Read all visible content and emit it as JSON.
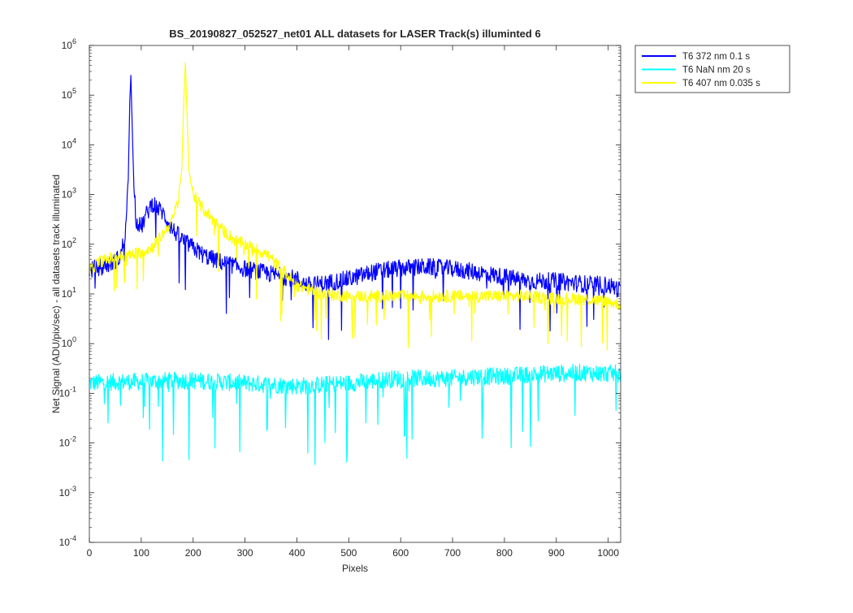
{
  "chart_data": {
    "type": "line",
    "title": "BS_20190827_052527_net01 ALL datasets for LASER  Track(s) illuminted 6",
    "xlabel": "Pixels",
    "ylabel": "Net Signal (ADU/pix/sec) - all datasets track illuminated",
    "xlim": [
      0,
      1024
    ],
    "ylim_exponent": [
      -4,
      6
    ],
    "yscale": "log",
    "x_ticks": [
      "0",
      "100",
      "200",
      "300",
      "400",
      "500",
      "600",
      "700",
      "800",
      "900",
      "1000"
    ],
    "y_ticks": [
      {
        "base": "10",
        "exp": "-4"
      },
      {
        "base": "10",
        "exp": "-3"
      },
      {
        "base": "10",
        "exp": "-2"
      },
      {
        "base": "10",
        "exp": "-1"
      },
      {
        "base": "10",
        "exp": "0"
      },
      {
        "base": "10",
        "exp": "1"
      },
      {
        "base": "10",
        "exp": "2"
      },
      {
        "base": "10",
        "exp": "3"
      },
      {
        "base": "10",
        "exp": "4"
      },
      {
        "base": "10",
        "exp": "5"
      },
      {
        "base": "10",
        "exp": "6"
      }
    ],
    "grid": false,
    "legend_position": "outside-top-right",
    "series": [
      {
        "name": "T6 372 nm 0.1 s",
        "color": "#0000ff",
        "x": [
          0,
          20,
          40,
          60,
          70,
          75,
          78,
          80,
          82,
          85,
          90,
          100,
          110,
          120,
          125,
          130,
          140,
          150,
          160,
          180,
          200,
          220,
          250,
          300,
          350,
          400,
          420,
          450,
          500,
          550,
          600,
          650,
          700,
          750,
          800,
          850,
          900,
          950,
          1000,
          1024
        ],
        "y": [
          30,
          35,
          40,
          55,
          200,
          2000,
          80000,
          250000,
          40000,
          3000,
          300,
          220,
          400,
          650,
          650,
          550,
          450,
          300,
          200,
          120,
          85,
          60,
          45,
          32,
          25,
          20,
          15,
          16,
          20,
          28,
          33,
          35,
          32,
          27,
          22,
          18,
          18,
          16,
          15,
          12
        ]
      },
      {
        "name": "T6 NaN nm 20 s",
        "color": "#00ffff",
        "x": [
          0,
          50,
          100,
          150,
          200,
          250,
          300,
          350,
          400,
          450,
          500,
          550,
          600,
          650,
          700,
          750,
          800,
          850,
          900,
          950,
          1000,
          1024
        ],
        "y": [
          0.16,
          0.17,
          0.17,
          0.18,
          0.18,
          0.17,
          0.16,
          0.15,
          0.14,
          0.15,
          0.16,
          0.18,
          0.2,
          0.2,
          0.2,
          0.22,
          0.22,
          0.24,
          0.25,
          0.26,
          0.25,
          0.25
        ]
      },
      {
        "name": "T6 407 nm 0.035 s",
        "color": "#ffff00",
        "x": [
          0,
          20,
          50,
          80,
          100,
          120,
          140,
          160,
          170,
          178,
          182,
          185,
          188,
          192,
          200,
          210,
          220,
          240,
          260,
          280,
          300,
          320,
          340,
          360,
          380,
          400,
          450,
          500,
          550,
          600,
          650,
          700,
          750,
          800,
          850,
          900,
          950,
          1000,
          1024
        ],
        "y": [
          30,
          45,
          55,
          60,
          70,
          85,
          150,
          300,
          700,
          3000,
          80000,
          450000,
          50000,
          3000,
          1000,
          700,
          500,
          300,
          180,
          120,
          100,
          80,
          65,
          40,
          25,
          15,
          10,
          9,
          9,
          9,
          9,
          9,
          9,
          9,
          9,
          8,
          8,
          7,
          6
        ]
      }
    ]
  }
}
